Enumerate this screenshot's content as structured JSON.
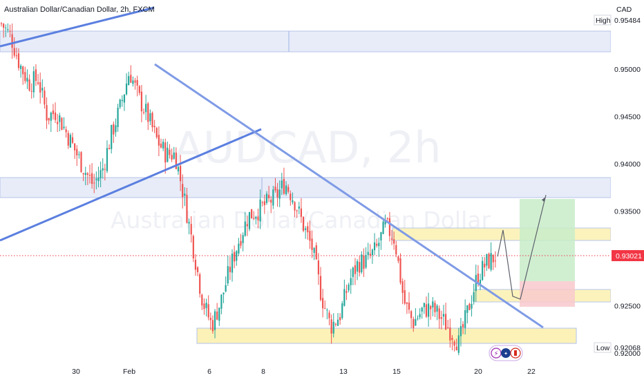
{
  "header": {
    "symbol_title": "Australian Dollar/Canadian Dollar, 2h, FXCM"
  },
  "watermark": {
    "ticker": "AUDCAD, 2h",
    "name": "Australian Dollar/Canadian Dollar"
  },
  "price_axis": {
    "currency": "CAD",
    "high_label": "High",
    "high_value": "0.95484",
    "low_label": "Low",
    "low_value": "0.92068",
    "last_price": "0.93021",
    "ticks": [
      "0.95000",
      "0.94500",
      "0.94000",
      "0.93500",
      "0.92500",
      "0.92000"
    ]
  },
  "time_axis": {
    "ticks": [
      "30",
      "Feb",
      "6",
      "8",
      "13",
      "15",
      "20",
      "22"
    ]
  },
  "colors": {
    "up": "#26a69a",
    "down": "#ef5350",
    "trendline": "#5b7fe0",
    "zone_blue": "#d9e2f5",
    "zone_yellow": "#fdf3b3",
    "target_green": "#c8ecc9",
    "stop_red": "#f8c9cc",
    "last_price": "#f23645"
  },
  "chart_data": {
    "type": "candlestick",
    "title": "Australian Dollar/Canadian Dollar, 2h, FXCM",
    "y_unit": "CAD",
    "ylim": [
      0.9195,
      0.9557
    ],
    "x_ticks": [
      "30",
      "Feb",
      "6",
      "8",
      "13",
      "15",
      "20",
      "22"
    ],
    "y_ticks": [
      0.95,
      0.945,
      0.94,
      0.935,
      0.925,
      0.92
    ],
    "high": 0.95484,
    "low": 0.92068,
    "last": 0.93021,
    "path_points": [
      0.9548,
      0.9535,
      0.9505,
      0.9485,
      0.949,
      0.945,
      0.9455,
      0.9435,
      0.9415,
      0.9395,
      0.9378,
      0.9392,
      0.943,
      0.946,
      0.9498,
      0.947,
      0.945,
      0.9425,
      0.941,
      0.941,
      0.9363,
      0.931,
      0.9255,
      0.9229,
      0.9255,
      0.929,
      0.932,
      0.9345,
      0.935,
      0.9358,
      0.9365,
      0.938,
      0.9362,
      0.9335,
      0.931,
      0.926,
      0.9228,
      0.924,
      0.9275,
      0.9295,
      0.9298,
      0.931,
      0.9335,
      0.932,
      0.9255,
      0.9232,
      0.9245,
      0.9248,
      0.9238,
      0.9225,
      0.921,
      0.9245,
      0.928,
      0.9295,
      0.9302
    ],
    "projection": [
      0.9302,
      0.933,
      0.926,
      0.9257,
      0.9367
    ],
    "zones": [
      {
        "kind": "supply",
        "from": 0.9519,
        "to": 0.9553
      },
      {
        "kind": "resistance",
        "from": 0.9363,
        "to": 0.9385
      },
      {
        "kind": "resistance",
        "from": 0.9318,
        "to": 0.9332
      },
      {
        "kind": "support",
        "from": 0.9254,
        "to": 0.9267
      },
      {
        "kind": "support",
        "from": 0.9205,
        "to": 0.9227
      }
    ],
    "position": {
      "entry": 0.9267,
      "target": 0.9362,
      "stop": 0.925
    }
  }
}
